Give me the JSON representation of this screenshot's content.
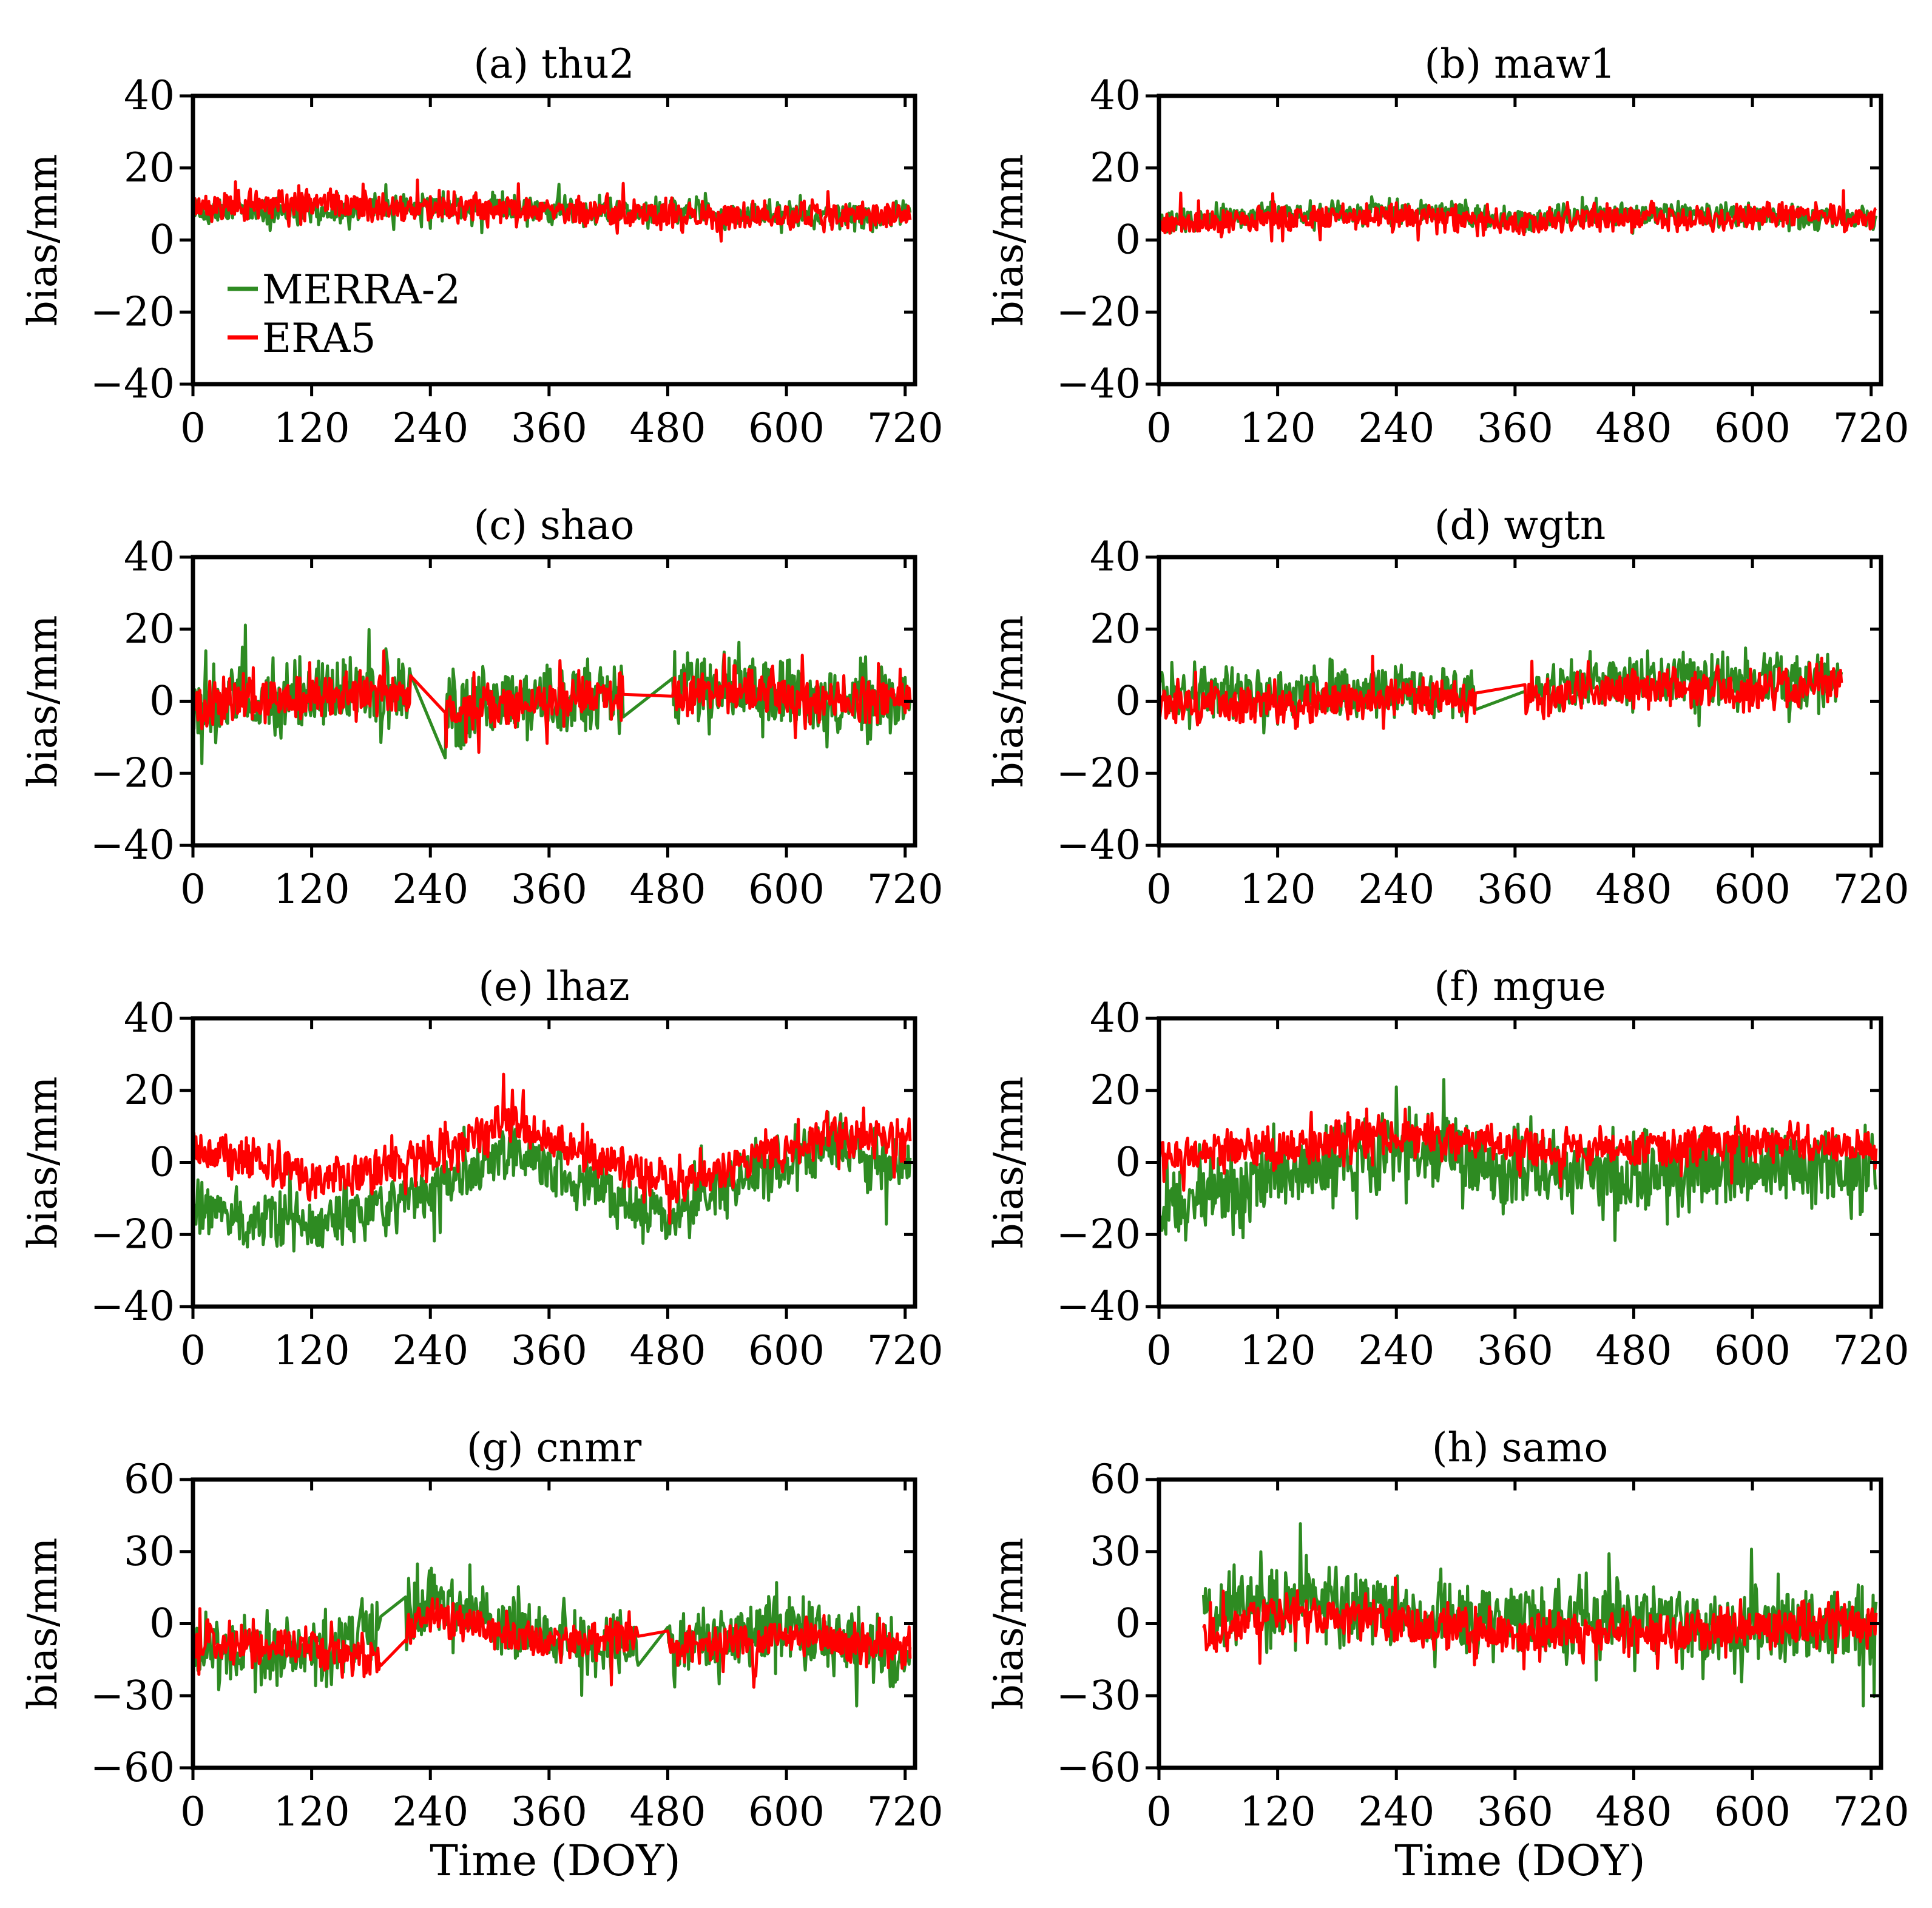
{
  "figure": {
    "x_label": "Time (DOY)",
    "y_label": "bias/mm"
  },
  "colors": {
    "MERRA-2": "#2e8b22",
    "ERA5": "#ff0000"
  },
  "legend": [
    {
      "name": "MERRA-2",
      "color": "#2e8b22"
    },
    {
      "name": "ERA5",
      "color": "#ff0000"
    }
  ],
  "chart_data": [
    {
      "type": "line",
      "title": "(a) thu2",
      "xlabel": "",
      "ylabel": "bias/mm",
      "xlim": [
        0,
        730
      ],
      "ylim": [
        -40,
        40
      ],
      "xticks": [
        0,
        120,
        240,
        360,
        480,
        600,
        720
      ],
      "yticks": [
        -40,
        -20,
        0,
        20,
        40
      ],
      "series": [
        {
          "name": "MERRA-2",
          "mean": [
            [
              0,
              8
            ],
            [
              120,
              8
            ],
            [
              240,
              9
            ],
            [
              360,
              8
            ],
            [
              480,
              8
            ],
            [
              600,
              7
            ],
            [
              720,
              7
            ]
          ],
          "amplitude": 4,
          "gaps": [],
          "start": 0,
          "end": 725
        },
        {
          "name": "ERA5",
          "mean": [
            [
              0,
              9
            ],
            [
              120,
              10
            ],
            [
              240,
              9
            ],
            [
              360,
              8
            ],
            [
              480,
              7
            ],
            [
              600,
              7
            ],
            [
              720,
              7
            ]
          ],
          "amplitude": 4.5,
          "gaps": [],
          "start": 0,
          "end": 725
        }
      ]
    },
    {
      "type": "line",
      "title": "(b) maw1",
      "xlabel": "",
      "ylabel": "bias/mm",
      "xlim": [
        0,
        730
      ],
      "ylim": [
        -40,
        40
      ],
      "xticks": [
        0,
        120,
        240,
        360,
        480,
        600,
        720
      ],
      "yticks": [
        -40,
        -20,
        0,
        20,
        40
      ],
      "series": [
        {
          "name": "MERRA-2",
          "mean": [
            [
              0,
              5
            ],
            [
              120,
              7
            ],
            [
              240,
              8
            ],
            [
              360,
              6
            ],
            [
              480,
              7
            ],
            [
              600,
              7
            ],
            [
              720,
              6
            ]
          ],
          "amplitude": 3.5,
          "gaps": [],
          "start": 0,
          "end": 725
        },
        {
          "name": "ERA5",
          "mean": [
            [
              0,
              4
            ],
            [
              120,
              6
            ],
            [
              240,
              7
            ],
            [
              360,
              5
            ],
            [
              480,
              6
            ],
            [
              600,
              7
            ],
            [
              720,
              6
            ]
          ],
          "amplitude": 4,
          "gaps": [],
          "start": 0,
          "end": 725
        }
      ]
    },
    {
      "type": "line",
      "title": "(c) shao",
      "xlabel": "",
      "ylabel": "bias/mm",
      "xlim": [
        0,
        730
      ],
      "ylim": [
        -40,
        40
      ],
      "xticks": [
        0,
        120,
        240,
        360,
        480,
        600,
        720
      ],
      "yticks": [
        -40,
        -20,
        0,
        20,
        40
      ],
      "series": [
        {
          "name": "MERRA-2",
          "mean": [
            [
              0,
              -2
            ],
            [
              120,
              2
            ],
            [
              220,
              3
            ],
            [
              260,
              -2
            ],
            [
              360,
              0
            ],
            [
              440,
              2
            ],
            [
              480,
              2
            ],
            [
              560,
              5
            ],
            [
              640,
              0
            ],
            [
              720,
              0
            ]
          ],
          "amplitude": 12,
          "gaps": [
            [
              220,
              255
            ],
            [
              435,
              485
            ]
          ],
          "start": 0,
          "end": 725
        },
        {
          "name": "ERA5",
          "mean": [
            [
              0,
              -2
            ],
            [
              120,
              2
            ],
            [
              220,
              2
            ],
            [
              260,
              -3
            ],
            [
              360,
              0
            ],
            [
              440,
              2
            ],
            [
              480,
              2
            ],
            [
              560,
              3
            ],
            [
              640,
              0
            ],
            [
              720,
              1
            ]
          ],
          "amplitude": 7,
          "gaps": [
            [
              220,
              255
            ],
            [
              435,
              485
            ]
          ],
          "start": 0,
          "end": 725
        }
      ]
    },
    {
      "type": "line",
      "title": "(d) wgtn",
      "xlabel": "",
      "ylabel": "bias/mm",
      "xlim": [
        0,
        730
      ],
      "ylim": [
        -40,
        40
      ],
      "xticks": [
        0,
        120,
        240,
        360,
        480,
        600,
        720
      ],
      "yticks": [
        -40,
        -20,
        0,
        20,
        40
      ],
      "series": [
        {
          "name": "MERRA-2",
          "mean": [
            [
              0,
              3
            ],
            [
              120,
              1
            ],
            [
              240,
              4
            ],
            [
              320,
              2
            ],
            [
              370,
              3
            ],
            [
              480,
              6
            ],
            [
              600,
              5
            ],
            [
              690,
              6
            ]
          ],
          "amplitude": 8,
          "gaps": [
            [
              320,
              370
            ]
          ],
          "start": 0,
          "end": 690
        },
        {
          "name": "ERA5",
          "mean": [
            [
              0,
              0
            ],
            [
              120,
              -1
            ],
            [
              240,
              2
            ],
            [
              320,
              0
            ],
            [
              370,
              1
            ],
            [
              480,
              4
            ],
            [
              600,
              3
            ],
            [
              690,
              5
            ]
          ],
          "amplitude": 6,
          "gaps": [
            [
              320,
              370
            ]
          ],
          "start": 0,
          "end": 690
        }
      ]
    },
    {
      "type": "line",
      "title": "(e) lhaz",
      "xlabel": "",
      "ylabel": "bias/mm",
      "xlim": [
        0,
        730
      ],
      "ylim": [
        -40,
        40
      ],
      "xticks": [
        0,
        120,
        240,
        360,
        480,
        600,
        720
      ],
      "yticks": [
        -40,
        -20,
        0,
        20,
        40
      ],
      "series": [
        {
          "name": "MERRA-2",
          "mean": [
            [
              0,
              -12
            ],
            [
              120,
              -18
            ],
            [
              240,
              -8
            ],
            [
              320,
              2
            ],
            [
              400,
              -5
            ],
            [
              480,
              -15
            ],
            [
              560,
              -5
            ],
            [
              640,
              5
            ],
            [
              720,
              0
            ]
          ],
          "amplitude": 9,
          "gaps": [],
          "start": 0,
          "end": 725
        },
        {
          "name": "ERA5",
          "mean": [
            [
              0,
              5
            ],
            [
              120,
              -5
            ],
            [
              240,
              0
            ],
            [
              320,
              12
            ],
            [
              400,
              2
            ],
            [
              480,
              -5
            ],
            [
              560,
              0
            ],
            [
              640,
              8
            ],
            [
              720,
              5
            ]
          ],
          "amplitude": 7,
          "gaps": [],
          "start": 0,
          "end": 725
        }
      ]
    },
    {
      "type": "line",
      "title": "(f) mgue",
      "xlabel": "",
      "ylabel": "bias/mm",
      "xlim": [
        0,
        730
      ],
      "ylim": [
        -40,
        40
      ],
      "xticks": [
        0,
        120,
        240,
        360,
        480,
        600,
        720
      ],
      "yticks": [
        -40,
        -20,
        0,
        20,
        40
      ],
      "series": [
        {
          "name": "MERRA-2",
          "mean": [
            [
              0,
              -12
            ],
            [
              120,
              -5
            ],
            [
              240,
              5
            ],
            [
              360,
              -2
            ],
            [
              480,
              -3
            ],
            [
              600,
              0
            ],
            [
              720,
              -3
            ]
          ],
          "amplitude": 12,
          "gaps": [],
          "start": 0,
          "end": 725
        },
        {
          "name": "ERA5",
          "mean": [
            [
              0,
              2
            ],
            [
              120,
              4
            ],
            [
              240,
              8
            ],
            [
              360,
              4
            ],
            [
              480,
              3
            ],
            [
              600,
              5
            ],
            [
              720,
              4
            ]
          ],
          "amplitude": 6,
          "gaps": [],
          "start": 0,
          "end": 725
        }
      ]
    },
    {
      "type": "line",
      "title": "(g) cnmr",
      "xlabel": "Time (DOY)",
      "ylabel": "bias/mm",
      "xlim": [
        0,
        730
      ],
      "ylim": [
        -60,
        60
      ],
      "xticks": [
        0,
        120,
        240,
        360,
        480,
        600,
        720
      ],
      "yticks": [
        -60,
        -30,
        0,
        30,
        60
      ],
      "series": [
        {
          "name": "MERRA-2",
          "mean": [
            [
              0,
              -10
            ],
            [
              120,
              -12
            ],
            [
              190,
              0
            ],
            [
              240,
              10
            ],
            [
              360,
              -5
            ],
            [
              450,
              -10
            ],
            [
              480,
              -12
            ],
            [
              600,
              0
            ],
            [
              720,
              -15
            ]
          ],
          "amplitude": 15,
          "gaps": [
            [
              190,
              215
            ],
            [
              450,
              480
            ]
          ],
          "start": 0,
          "end": 725
        },
        {
          "name": "ERA5",
          "mean": [
            [
              0,
              -8
            ],
            [
              120,
              -10
            ],
            [
              190,
              -15
            ],
            [
              240,
              5
            ],
            [
              360,
              -8
            ],
            [
              450,
              -5
            ],
            [
              480,
              -12
            ],
            [
              600,
              -5
            ],
            [
              720,
              -10
            ]
          ],
          "amplitude": 9,
          "gaps": [
            [
              190,
              215
            ],
            [
              450,
              480
            ]
          ],
          "start": 0,
          "end": 725
        }
      ]
    },
    {
      "type": "line",
      "title": "(h) samo",
      "xlabel": "Time (DOY)",
      "ylabel": "bias/mm",
      "xlim": [
        0,
        730
      ],
      "ylim": [
        -60,
        60
      ],
      "xticks": [
        0,
        120,
        240,
        360,
        480,
        600,
        720
      ],
      "yticks": [
        -60,
        -30,
        0,
        30,
        60
      ],
      "series": [
        {
          "name": "MERRA-2",
          "mean": [
            [
              45,
              5
            ],
            [
              120,
              12
            ],
            [
              240,
              5
            ],
            [
              360,
              0
            ],
            [
              480,
              2
            ],
            [
              600,
              -2
            ],
            [
              720,
              -2
            ]
          ],
          "amplitude": 17,
          "gaps": [],
          "start": 45,
          "end": 725
        },
        {
          "name": "ERA5",
          "mean": [
            [
              45,
              -5
            ],
            [
              120,
              5
            ],
            [
              240,
              0
            ],
            [
              360,
              -5
            ],
            [
              480,
              -3
            ],
            [
              600,
              -2
            ],
            [
              720,
              0
            ]
          ],
          "amplitude": 10,
          "gaps": [],
          "start": 45,
          "end": 725
        }
      ]
    }
  ]
}
